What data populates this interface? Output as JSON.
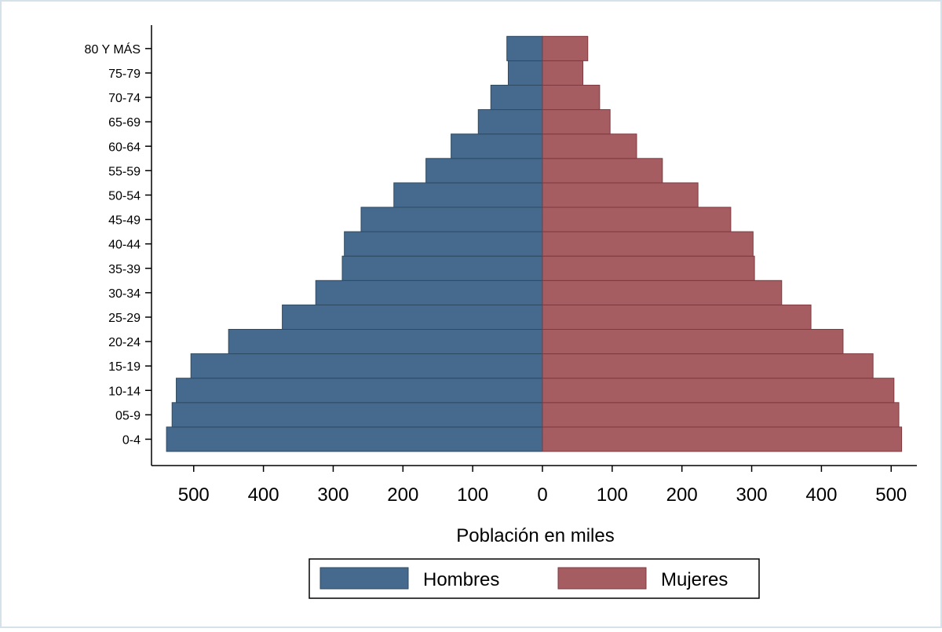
{
  "chart_data": {
    "type": "bar",
    "orientation": "horizontal",
    "layout": "population-pyramid",
    "categories": [
      "0-4",
      "05-9",
      "10-14",
      "15-19",
      "20-24",
      "25-29",
      "30-34",
      "35-39",
      "40-44",
      "45-49",
      "50-54",
      "55-59",
      "60-64",
      "65-69",
      "70-74",
      "75-79",
      "80 Y MÁS"
    ],
    "series": [
      {
        "name": "Hombres",
        "color": "#466a8d",
        "side": "left",
        "values": [
          539,
          531,
          525,
          504,
          450,
          373,
          325,
          287,
          284,
          260,
          213,
          167,
          131,
          92,
          74,
          49,
          51
        ]
      },
      {
        "name": "Mujeres",
        "color": "#a55d62",
        "side": "right",
        "values": [
          515,
          511,
          504,
          474,
          431,
          385,
          343,
          304,
          302,
          270,
          223,
          172,
          135,
          97,
          82,
          58,
          65
        ]
      }
    ],
    "xlabel": "Población en miles",
    "xticks": [
      {
        "value": -500,
        "label": "500"
      },
      {
        "value": -400,
        "label": "400"
      },
      {
        "value": -300,
        "label": "300"
      },
      {
        "value": -200,
        "label": "200"
      },
      {
        "value": -100,
        "label": "100"
      },
      {
        "value": 0,
        "label": "0"
      },
      {
        "value": 100,
        "label": "100"
      },
      {
        "value": 200,
        "label": "200"
      },
      {
        "value": 300,
        "label": "300"
      },
      {
        "value": 400,
        "label": "400"
      },
      {
        "value": 500,
        "label": "500"
      }
    ],
    "xlim": [
      -560,
      540
    ],
    "grid": false,
    "legend_position": "bottom-center"
  }
}
